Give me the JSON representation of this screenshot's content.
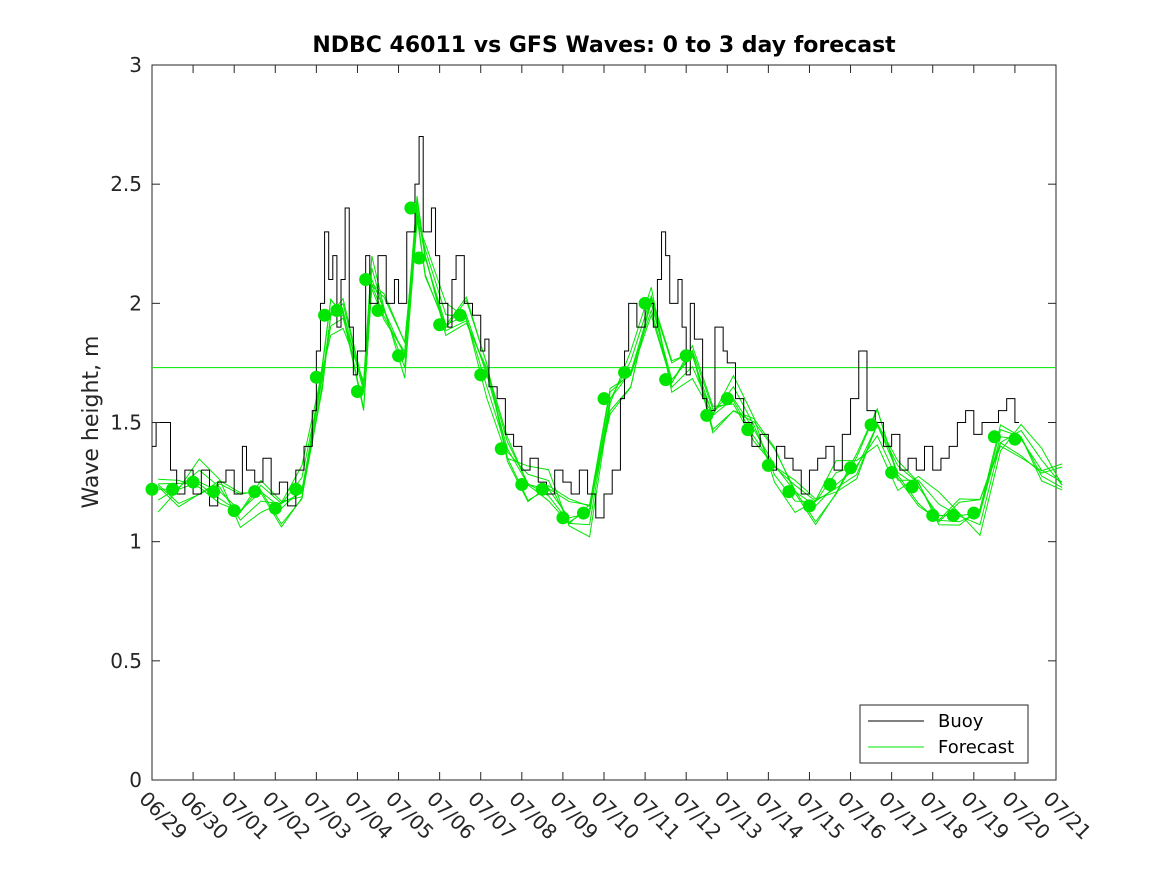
{
  "chart_data": {
    "type": "line",
    "title": "NDBC 46011 vs GFS Waves: 0 to 3 day forecast",
    "xlabel": "",
    "ylabel": "Wave height, m",
    "x_ticks": [
      "06/29",
      "06/30",
      "07/01",
      "07/02",
      "07/03",
      "07/04",
      "07/05",
      "07/06",
      "07/07",
      "07/08",
      "07/09",
      "07/10",
      "07/11",
      "07/12",
      "07/13",
      "07/14",
      "07/15",
      "07/16",
      "07/17",
      "07/18",
      "07/19",
      "07/20",
      "07/21"
    ],
    "xlim": [
      "06/29",
      "07/21"
    ],
    "ylim": [
      0,
      3
    ],
    "y_ticks": [
      "0",
      "0.5",
      "1",
      "1.5",
      "2",
      "2.5",
      "3"
    ],
    "grid": false,
    "legend": {
      "placement": "bottom-right",
      "entries": [
        "Buoy",
        "Forecast"
      ]
    },
    "colors": {
      "buoy": "#000000",
      "forecast": "#00e600",
      "axis": "#262626"
    },
    "reference_line": {
      "series": "Forecast",
      "y": 1.73
    },
    "series": [
      {
        "name": "Buoy",
        "x_unit": "days since 06/29",
        "points": [
          [
            0.0,
            1.4
          ],
          [
            0.1,
            1.5
          ],
          [
            0.3,
            1.5
          ],
          [
            0.45,
            1.3
          ],
          [
            0.6,
            1.2
          ],
          [
            0.8,
            1.3
          ],
          [
            1.0,
            1.2
          ],
          [
            1.2,
            1.3
          ],
          [
            1.4,
            1.15
          ],
          [
            1.6,
            1.25
          ],
          [
            1.8,
            1.3
          ],
          [
            2.0,
            1.2
          ],
          [
            2.2,
            1.4
          ],
          [
            2.3,
            1.3
          ],
          [
            2.5,
            1.25
          ],
          [
            2.7,
            1.35
          ],
          [
            2.9,
            1.2
          ],
          [
            3.1,
            1.25
          ],
          [
            3.3,
            1.15
          ],
          [
            3.5,
            1.3
          ],
          [
            3.7,
            1.4
          ],
          [
            3.9,
            1.55
          ],
          [
            4.0,
            1.8
          ],
          [
            4.1,
            2.0
          ],
          [
            4.2,
            2.3
          ],
          [
            4.3,
            2.1
          ],
          [
            4.4,
            2.2
          ],
          [
            4.5,
            1.9
          ],
          [
            4.6,
            2.1
          ],
          [
            4.7,
            2.4
          ],
          [
            4.8,
            1.9
          ],
          [
            4.9,
            1.7
          ],
          [
            5.0,
            1.8
          ],
          [
            5.2,
            2.2
          ],
          [
            5.3,
            2.0
          ],
          [
            5.5,
            2.2
          ],
          [
            5.7,
            2.0
          ],
          [
            5.9,
            2.1
          ],
          [
            6.0,
            2.0
          ],
          [
            6.2,
            2.3
          ],
          [
            6.4,
            2.5
          ],
          [
            6.5,
            2.7
          ],
          [
            6.6,
            2.3
          ],
          [
            6.8,
            2.4
          ],
          [
            6.9,
            2.2
          ],
          [
            7.0,
            2.0
          ],
          [
            7.2,
            1.9
          ],
          [
            7.3,
            2.1
          ],
          [
            7.4,
            2.2
          ],
          [
            7.6,
            2.0
          ],
          [
            7.8,
            1.95
          ],
          [
            8.0,
            1.8
          ],
          [
            8.1,
            1.85
          ],
          [
            8.2,
            1.65
          ],
          [
            8.4,
            1.6
          ],
          [
            8.6,
            1.45
          ],
          [
            8.8,
            1.4
          ],
          [
            9.0,
            1.3
          ],
          [
            9.2,
            1.35
          ],
          [
            9.4,
            1.25
          ],
          [
            9.6,
            1.2
          ],
          [
            9.8,
            1.3
          ],
          [
            10.0,
            1.25
          ],
          [
            10.2,
            1.2
          ],
          [
            10.4,
            1.3
          ],
          [
            10.6,
            1.2
          ],
          [
            10.8,
            1.1
          ],
          [
            11.0,
            1.2
          ],
          [
            11.2,
            1.3
          ],
          [
            11.4,
            1.6
          ],
          [
            11.5,
            1.8
          ],
          [
            11.6,
            2.0
          ],
          [
            11.8,
            1.9
          ],
          [
            12.0,
            2.0
          ],
          [
            12.2,
            1.9
          ],
          [
            12.3,
            2.1
          ],
          [
            12.4,
            2.3
          ],
          [
            12.5,
            2.2
          ],
          [
            12.6,
            2.0
          ],
          [
            12.8,
            2.1
          ],
          [
            12.9,
            1.9
          ],
          [
            13.0,
            1.7
          ],
          [
            13.1,
            2.0
          ],
          [
            13.2,
            1.85
          ],
          [
            13.4,
            1.6
          ],
          [
            13.5,
            1.55
          ],
          [
            13.7,
            1.9
          ],
          [
            13.9,
            1.8
          ],
          [
            14.0,
            1.75
          ],
          [
            14.2,
            1.6
          ],
          [
            14.4,
            1.5
          ],
          [
            14.6,
            1.4
          ],
          [
            14.8,
            1.45
          ],
          [
            15.0,
            1.3
          ],
          [
            15.2,
            1.4
          ],
          [
            15.4,
            1.35
          ],
          [
            15.6,
            1.3
          ],
          [
            15.8,
            1.2
          ],
          [
            16.0,
            1.3
          ],
          [
            16.2,
            1.35
          ],
          [
            16.4,
            1.4
          ],
          [
            16.6,
            1.3
          ],
          [
            16.8,
            1.45
          ],
          [
            17.0,
            1.6
          ],
          [
            17.2,
            1.8
          ],
          [
            17.4,
            1.55
          ],
          [
            17.6,
            1.5
          ],
          [
            17.8,
            1.4
          ],
          [
            18.0,
            1.45
          ],
          [
            18.2,
            1.3
          ],
          [
            18.4,
            1.35
          ],
          [
            18.6,
            1.3
          ],
          [
            18.8,
            1.4
          ],
          [
            19.0,
            1.3
          ],
          [
            19.2,
            1.35
          ],
          [
            19.4,
            1.4
          ],
          [
            19.6,
            1.5
          ],
          [
            19.8,
            1.55
          ],
          [
            20.0,
            1.45
          ],
          [
            20.2,
            1.5
          ],
          [
            20.4,
            1.5
          ],
          [
            20.6,
            1.55
          ],
          [
            20.8,
            1.6
          ],
          [
            21.0,
            1.5
          ],
          [
            21.1,
            1.5
          ]
        ]
      },
      {
        "name": "Forecast",
        "x_unit": "days since 06/29",
        "points": [
          [
            0.0,
            1.22
          ],
          [
            0.5,
            1.22
          ],
          [
            1.0,
            1.25
          ],
          [
            1.5,
            1.21
          ],
          [
            2.0,
            1.13
          ],
          [
            2.5,
            1.21
          ],
          [
            3.0,
            1.14
          ],
          [
            3.5,
            1.22
          ],
          [
            4.0,
            1.69
          ],
          [
            4.2,
            1.95
          ],
          [
            4.5,
            1.97
          ],
          [
            5.0,
            1.63
          ],
          [
            5.2,
            2.1
          ],
          [
            5.5,
            1.97
          ],
          [
            6.0,
            1.78
          ],
          [
            6.3,
            2.4
          ],
          [
            6.5,
            2.19
          ],
          [
            7.0,
            1.91
          ],
          [
            7.5,
            1.95
          ],
          [
            8.0,
            1.7
          ],
          [
            8.5,
            1.39
          ],
          [
            9.0,
            1.24
          ],
          [
            9.5,
            1.22
          ],
          [
            10.0,
            1.1
          ],
          [
            10.5,
            1.12
          ],
          [
            11.0,
            1.6
          ],
          [
            11.5,
            1.71
          ],
          [
            12.0,
            2.0
          ],
          [
            12.5,
            1.68
          ],
          [
            13.0,
            1.78
          ],
          [
            13.5,
            1.53
          ],
          [
            14.0,
            1.6
          ],
          [
            14.5,
            1.47
          ],
          [
            15.0,
            1.32
          ],
          [
            15.5,
            1.21
          ],
          [
            16.0,
            1.15
          ],
          [
            16.5,
            1.24
          ],
          [
            17.0,
            1.31
          ],
          [
            17.5,
            1.49
          ],
          [
            18.0,
            1.29
          ],
          [
            18.5,
            1.23
          ],
          [
            19.0,
            1.11
          ],
          [
            19.5,
            1.11
          ],
          [
            20.0,
            1.12
          ],
          [
            20.5,
            1.44
          ],
          [
            21.0,
            1.43
          ],
          [
            21.5,
            1.3
          ],
          [
            22.0,
            1.25
          ]
        ]
      }
    ],
    "ensemble_offsets": [
      0,
      0.05,
      -0.05,
      0.08,
      -0.03,
      0.1,
      -0.07
    ]
  }
}
